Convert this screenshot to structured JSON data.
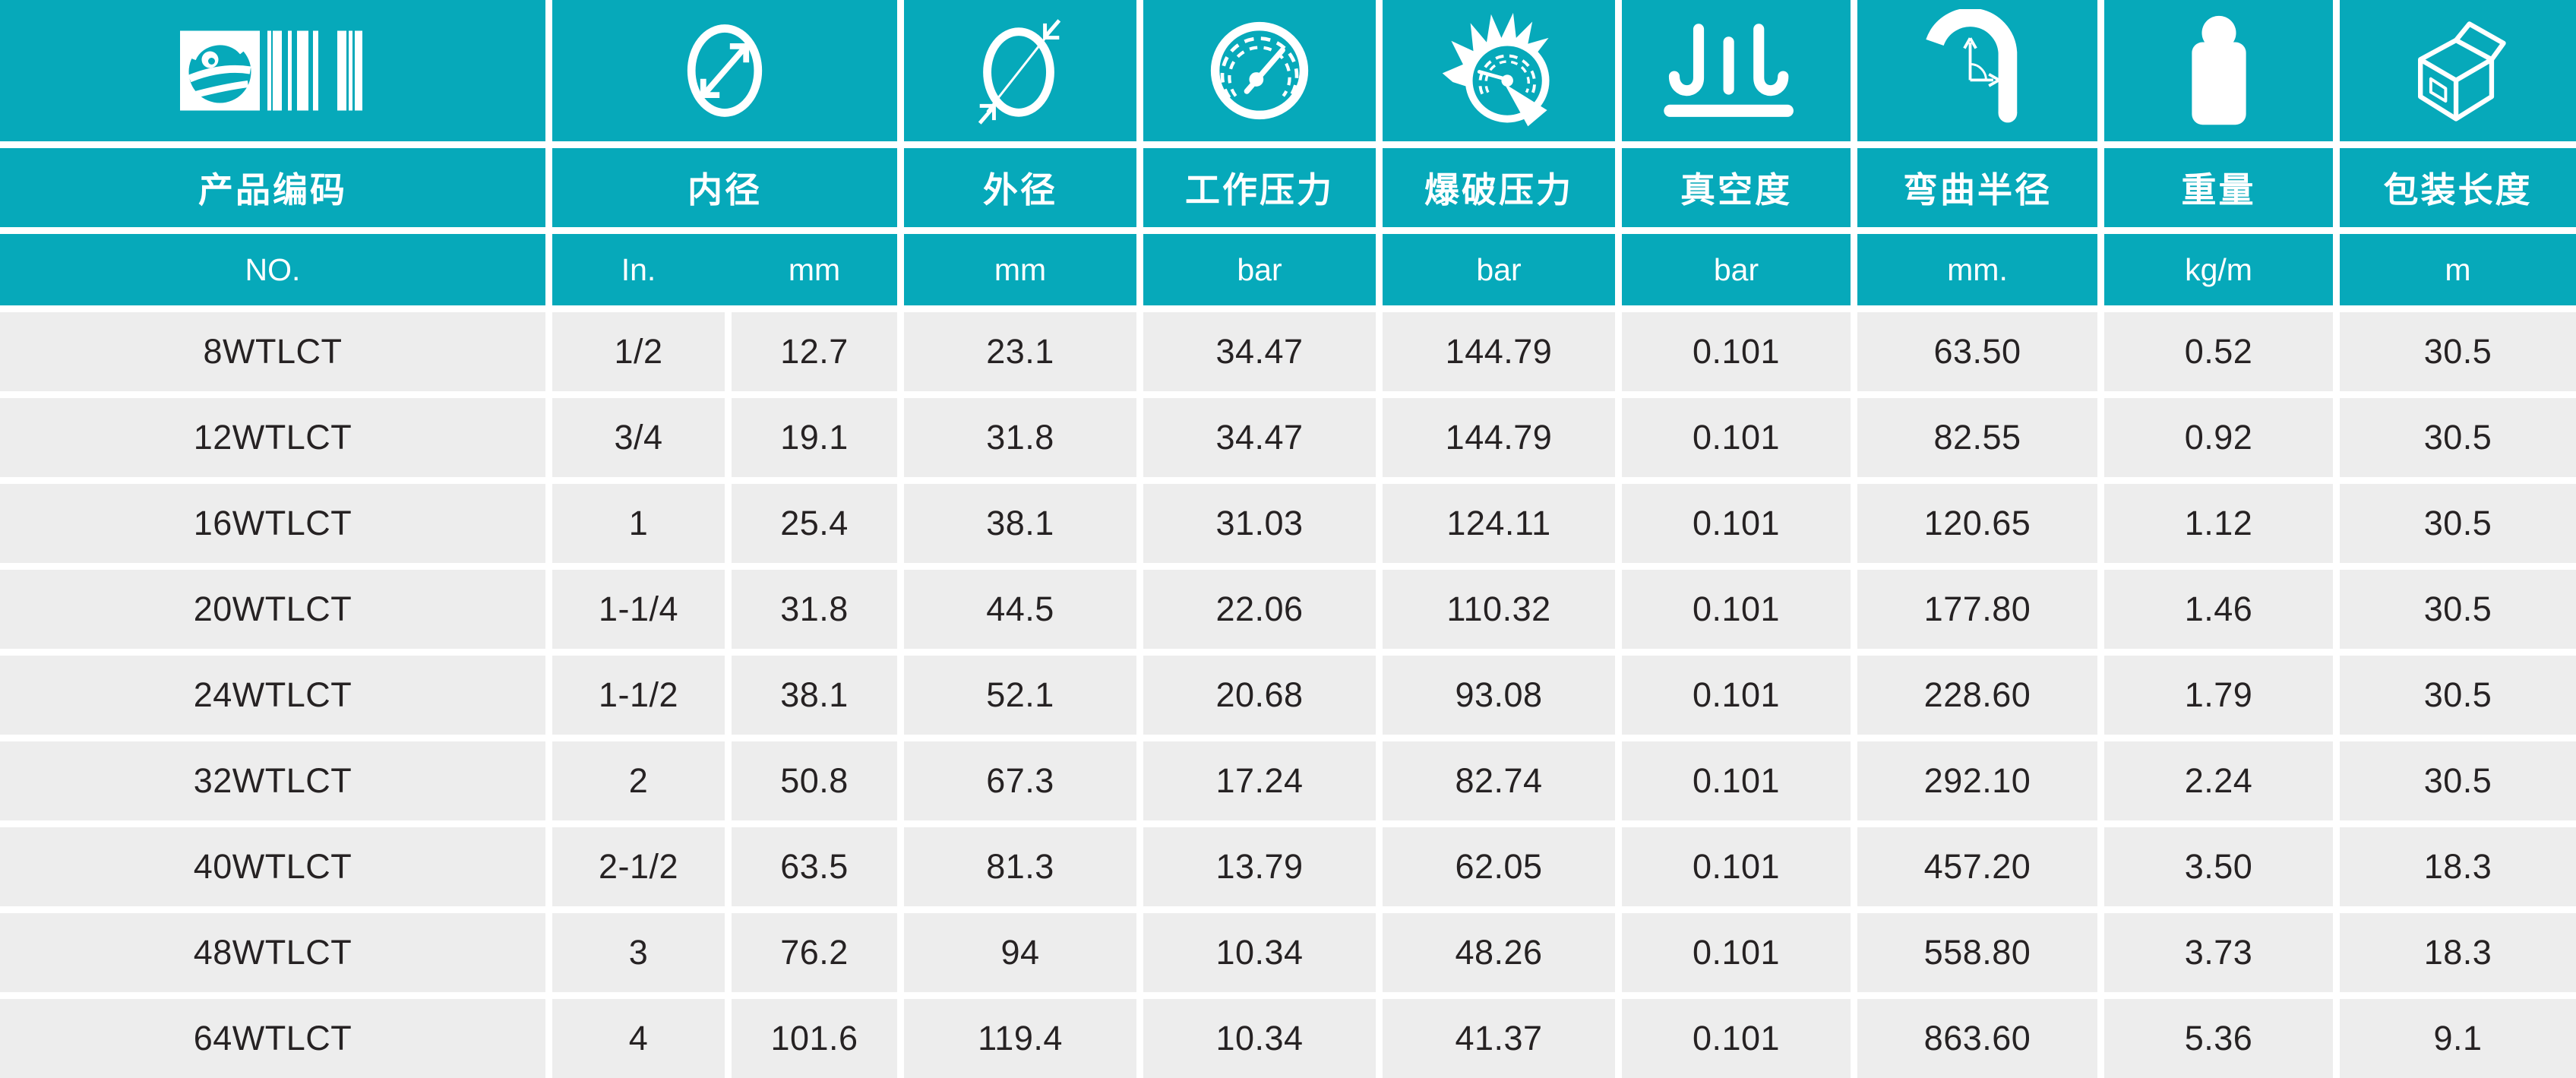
{
  "table": {
    "columns": [
      {
        "id": "product_code",
        "label": "产品编码",
        "unit": "NO.",
        "icon": "logo-barcode-icon"
      },
      {
        "id": "inner_diameter",
        "label": "内径",
        "units": [
          "In.",
          "mm"
        ],
        "icon": "inner-diameter-icon"
      },
      {
        "id": "outer_diameter",
        "label": "外径",
        "unit": "mm",
        "icon": "outer-diameter-icon"
      },
      {
        "id": "working_pressure",
        "label": "工作压力",
        "unit": "bar",
        "icon": "pressure-gauge-icon"
      },
      {
        "id": "burst_pressure",
        "label": "爆破压力",
        "unit": "bar",
        "icon": "burst-gauge-icon"
      },
      {
        "id": "vacuum",
        "label": "真空度",
        "unit": "bar",
        "icon": "vacuum-icon"
      },
      {
        "id": "bend_radius",
        "label": "弯曲半径",
        "unit": "mm.",
        "icon": "bend-radius-icon"
      },
      {
        "id": "weight",
        "label": "重量",
        "unit": "kg/m",
        "icon": "weight-icon"
      },
      {
        "id": "package_length",
        "label": "包装长度",
        "unit": "m",
        "icon": "package-box-icon"
      }
    ],
    "rows": [
      [
        "8WTLCT",
        "1/2",
        "12.7",
        "23.1",
        "34.47",
        "144.79",
        "0.101",
        "63.50",
        "0.52",
        "30.5"
      ],
      [
        "12WTLCT",
        "3/4",
        "19.1",
        "31.8",
        "34.47",
        "144.79",
        "0.101",
        "82.55",
        "0.92",
        "30.5"
      ],
      [
        "16WTLCT",
        "1",
        "25.4",
        "38.1",
        "31.03",
        "124.11",
        "0.101",
        "120.65",
        "1.12",
        "30.5"
      ],
      [
        "20WTLCT",
        "1-1/4",
        "31.8",
        "44.5",
        "22.06",
        "110.32",
        "0.101",
        "177.80",
        "1.46",
        "30.5"
      ],
      [
        "24WTLCT",
        "1-1/2",
        "38.1",
        "52.1",
        "20.68",
        "93.08",
        "0.101",
        "228.60",
        "1.79",
        "30.5"
      ],
      [
        "32WTLCT",
        "2",
        "50.8",
        "67.3",
        "17.24",
        "82.74",
        "0.101",
        "292.10",
        "2.24",
        "30.5"
      ],
      [
        "40WTLCT",
        "2-1/2",
        "63.5",
        "81.3",
        "13.79",
        "62.05",
        "0.101",
        "457.20",
        "3.50",
        "18.3"
      ],
      [
        "48WTLCT",
        "3",
        "76.2",
        "94",
        "10.34",
        "48.26",
        "0.101",
        "558.80",
        "3.73",
        "18.3"
      ],
      [
        "64WTLCT",
        "4",
        "101.6",
        "119.4",
        "10.34",
        "41.37",
        "0.101",
        "863.60",
        "5.36",
        "9.1"
      ]
    ]
  },
  "colors": {
    "header_teal": "#06A9BA",
    "row_background": "#EDEDED",
    "divider": "#FFFFFF",
    "header_text": "#FFFFFF",
    "data_text": "#262223"
  }
}
